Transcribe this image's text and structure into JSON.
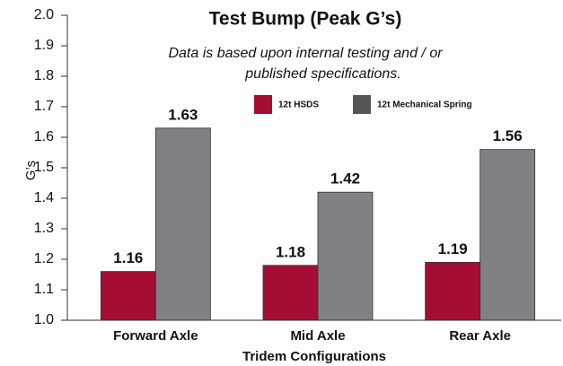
{
  "chart_data": {
    "type": "bar",
    "title": "Test Bump (Peak G’s)",
    "subtitle": [
      "Data is based upon internal testing and / or",
      "published specifications."
    ],
    "ylabel": "G’s",
    "xlabel": "Tridem Configurations",
    "categories": [
      "Forward Axle",
      "Mid Axle",
      "Rear Axle"
    ],
    "series": [
      {
        "name": "12t HSDS",
        "color": "#a50d34",
        "values": [
          1.16,
          1.18,
          1.19
        ]
      },
      {
        "name": "12t Mechanical Spring",
        "color": "#808085",
        "values": [
          1.63,
          1.42,
          1.56
        ]
      }
    ],
    "ylim": [
      1,
      2
    ],
    "yticks": [
      {
        "value": 1,
        "label": "1.0"
      },
      1.1,
      1.2,
      1.3,
      1.4,
      1.5,
      1.6,
      1.7,
      1.8,
      1.9,
      {
        "value": 2,
        "label": "2.0"
      }
    ]
  }
}
